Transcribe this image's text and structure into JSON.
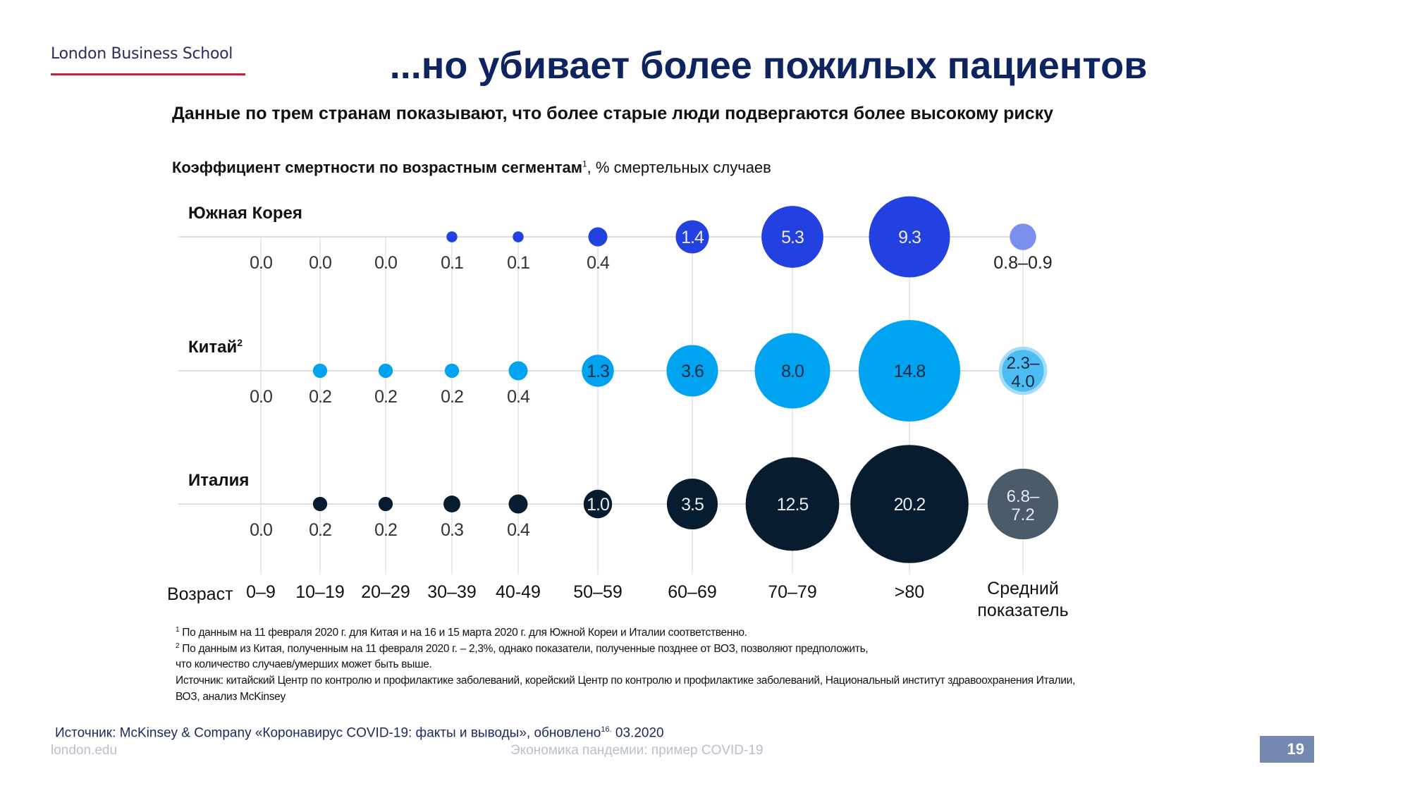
{
  "header": {
    "logo_text": "London Business School",
    "title": "...но убивает более пожилых пациентов",
    "subtitle": "Данные по трем странам показывают, что более старые люди подвергаются более высокому риску"
  },
  "chart_data": {
    "type": "bubble",
    "title_bold": "Коэффициент смертности по возрастным сегментам",
    "title_sup": "1",
    "title_rest": ", % смертельных случаев",
    "xlabel": "Возраст",
    "categories": [
      "0–9",
      "10–19",
      "20–29",
      "30–39",
      "40-49",
      "50–59",
      "60–69",
      "70–79",
      ">80"
    ],
    "average_label_line1": "Средний",
    "average_label_line2": "показатель",
    "series": [
      {
        "name": "Южная Корея",
        "name_sup": "",
        "color": "#2340e0",
        "label_color": "#e8ecff",
        "values": [
          0.0,
          0.0,
          0.0,
          0.1,
          0.1,
          0.4,
          1.4,
          5.3,
          9.3
        ],
        "labels": [
          "0.0",
          "0.0",
          "0.0",
          "0.1",
          "0.1",
          "0.4",
          "1.4",
          "5.3",
          "9.3"
        ],
        "average": {
          "low": 0.8,
          "high": 0.9,
          "label": "0.8–0.9",
          "color": "#7b8fec",
          "label_color": "#222222",
          "label_inside": false
        }
      },
      {
        "name": "Китай",
        "name_sup": "2",
        "color": "#00a3ef",
        "label_color": "#0b2a44",
        "values": [
          0.0,
          0.2,
          0.2,
          0.2,
          0.4,
          1.3,
          3.6,
          8.0,
          14.8
        ],
        "labels": [
          "0.0",
          "0.2",
          "0.2",
          "0.2",
          "0.4",
          "1.3",
          "3.6",
          "8.0",
          "14.8"
        ],
        "average": {
          "low": 2.3,
          "high": 4.0,
          "label_line1": "2.3–",
          "label_line2": "4.0",
          "color": "#4cbcf2",
          "outer_color": "#a5dcf8",
          "label_color": "#0b2a44",
          "label_inside": true
        }
      },
      {
        "name": "Италия",
        "name_sup": "",
        "color": "#071c2e",
        "label_color": "#e6eaef",
        "values": [
          0.0,
          0.2,
          0.2,
          0.3,
          0.4,
          1.0,
          3.5,
          12.5,
          20.2
        ],
        "labels": [
          "0.0",
          "0.2",
          "0.2",
          "0.3",
          "0.4",
          "1.0",
          "3.5",
          "12.5",
          "20.2"
        ],
        "average": {
          "low": 6.8,
          "high": 7.2,
          "label_line1": "6.8–",
          "label_line2": "7.2",
          "color": "#4b5b69",
          "label_color": "#e6eaef",
          "label_inside": true
        }
      }
    ]
  },
  "footnotes": {
    "note1_sup": "1",
    "note1": " По данным на 11 февраля 2020 г. для Китая и на 16 и 15 марта 2020 г. для Южной Кореи и Италии соответственно.",
    "note2_sup": "2",
    "note2": " По данным из Китая, полученным на 11 февраля 2020 г. – 2,3%, однако показатели, полученные позднее от ВОЗ, позволяют предположить,",
    "note2_cont": "что количество случаев/умерших может быть выше.",
    "sources": "Источник: китайский Центр по контролю и профилактике заболеваний, корейский Центр по контролю и профилактике заболеваний, Национальный институт здравоохранения Италии,",
    "sources_cont": "ВОЗ, анализ McKinsey"
  },
  "footer": {
    "source_main": "Источник: McKinsey & Company «Коронавирус COVID-19: факты и выводы», обновлено",
    "source_sup": "16.",
    "source_date": " 03.2020",
    "site": "london.edu",
    "center": "Экономика пандемии: пример COVID-19",
    "page_number": "19"
  }
}
